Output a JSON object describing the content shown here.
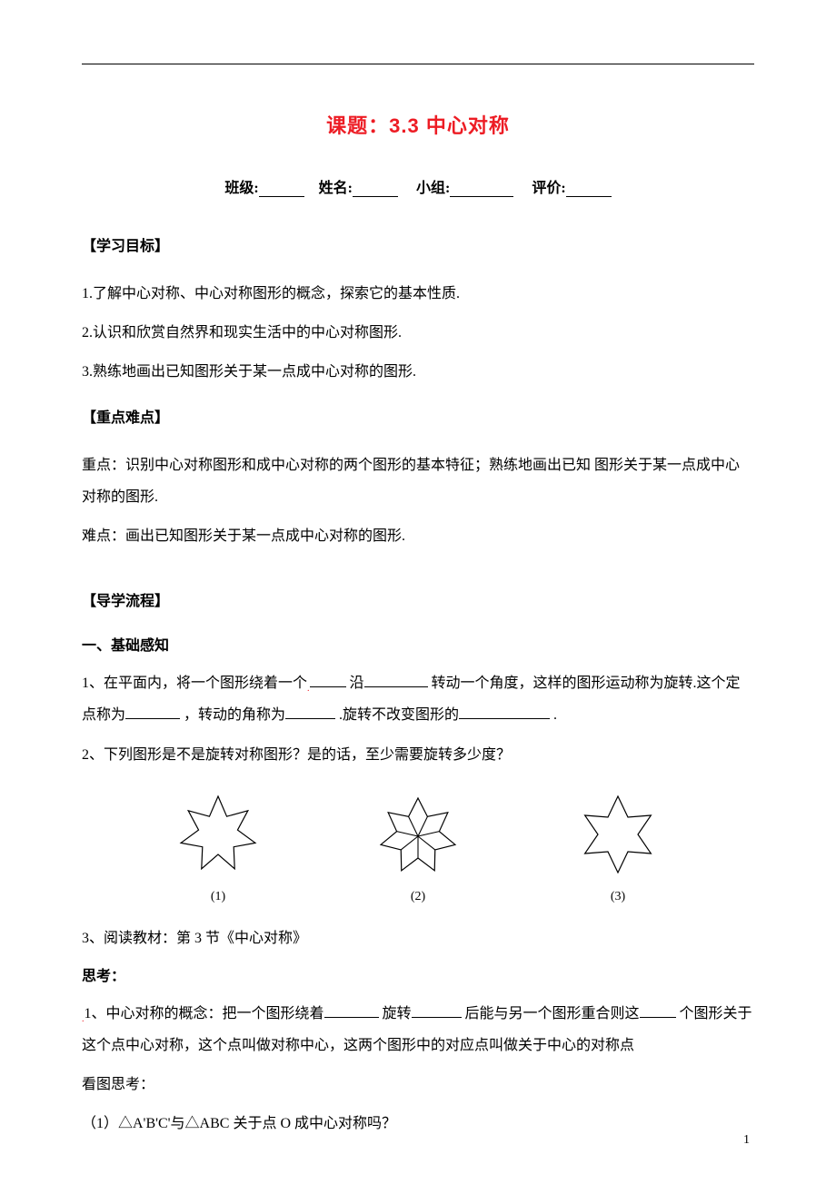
{
  "colors": {
    "title_color": "#ed1c24",
    "text_color": "#000000",
    "background": "#ffffff",
    "rule_color": "#000000"
  },
  "typography": {
    "title_fontsize": 22,
    "body_fontsize": 16,
    "label_fontsize": 14,
    "title_font": "SimHei",
    "body_font": "SimSun"
  },
  "title": "课题：3.3 中心对称",
  "form": {
    "class_label": "班级:",
    "name_label": "姓名:",
    "group_label": "小组:",
    "eval_label": "评价:"
  },
  "section_goals": {
    "header": "【学习目标】",
    "items": [
      "1.了解中心对称、中心对称图形的概念，探索它的基本性质.",
      "2.认识和欣赏自然界和现实生活中的中心对称图形.",
      "3.熟练地画出已知图形关于某一点成中心对称的图形."
    ]
  },
  "section_keys": {
    "header": "【重点难点】",
    "key_prefix": "重点：",
    "key_text": "识别中心对称图形和成中心对称的两个图形的基本特征；熟练地画出已知 图形关于某一点成中心对称的图形.",
    "diff_prefix": "难点：",
    "diff_text": "画出已知图形关于某一点成中心对称的图形."
  },
  "section_flow": {
    "header": "【导学流程】",
    "sub1": "一、基础感知",
    "q1_pre": "1、在平面内，将一个图形绕着一个",
    "q1_mid1": "沿",
    "q1_mid2": "转动一个角度，这样的图形运动称为旋转.这个定点称为",
    "q1_mid3": "，转动的角称为",
    "q1_mid4": ".旋转不改变图形的",
    "q1_end": ".",
    "q2": "2、下列图形是不是旋转对称图形？是的话，至少需要旋转多少度？",
    "figures": {
      "labels": [
        "(1)",
        "(2)",
        "(3)"
      ],
      "stroke": "#000000",
      "stroke_width": 1.2,
      "fig1": {
        "type": "star",
        "points": 7,
        "outer_r": 42,
        "inner_r": 22
      },
      "fig2": {
        "type": "star-with-center",
        "points": 7,
        "outer_r": 42,
        "inner_r": 24,
        "has_center_lines": true
      },
      "fig3": {
        "type": "star",
        "points": 6,
        "outer_r": 42,
        "inner_r": 22
      }
    },
    "q3": "3、阅读教材：第 3 节《中心对称》",
    "think_header": "思考：",
    "think1_pre": "1、中心对称的概念：把一个图形绕着",
    "think1_b": "旋转",
    "think1_c": "后能与另一个图形重合则这",
    "think1_d": "个图形关于这个点中心对称，这个点叫做对称中心，这两个图形中的对应点叫做关于中心的对称点",
    "look_header": "看图思考：",
    "look_q1": "（1）△A'B'C'与△ABC 关于点 O 成中心对称吗？"
  },
  "page_number": "1"
}
